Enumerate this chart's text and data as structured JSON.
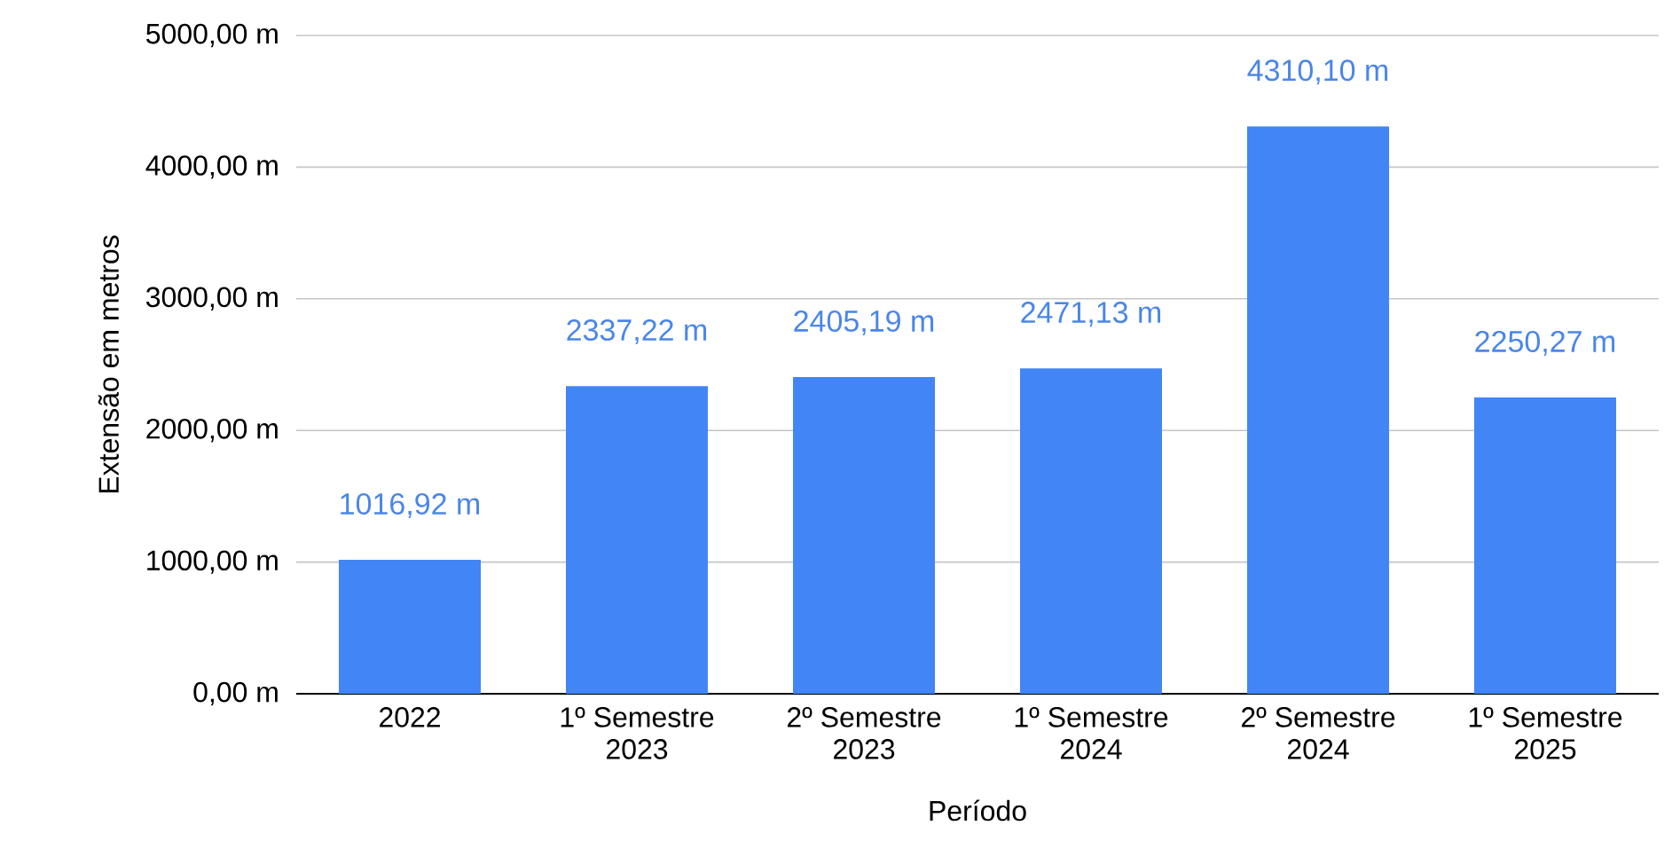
{
  "chart_data": {
    "type": "bar",
    "xlabel": "Período",
    "ylabel": "Extensão em metros",
    "categories": [
      "2022",
      "1º Semestre 2023",
      "2º Semestre 2023",
      "1º Semestre 2024",
      "2º Semestre 2024",
      "1º Semestre 2025"
    ],
    "values": [
      1016.92,
      2337.22,
      2405.19,
      2471.13,
      4310.1,
      2250.27
    ],
    "value_labels": [
      "1016,92 m",
      "2337,22 m",
      "2405,19 m",
      "2471,13 m",
      "4310,10 m",
      "2250,27 m"
    ],
    "color": "#4285f4",
    "ylim": [
      0,
      5000
    ],
    "yticks": [
      {
        "value": 0,
        "label": "0,00 m"
      },
      {
        "value": 1000,
        "label": "1000,00 m"
      },
      {
        "value": 2000,
        "label": "2000,00 m"
      },
      {
        "value": 3000,
        "label": "3000,00 m"
      },
      {
        "value": 4000,
        "label": "4000,00 m"
      },
      {
        "value": 5000,
        "label": "5000,00 m"
      }
    ],
    "grid": "y"
  }
}
